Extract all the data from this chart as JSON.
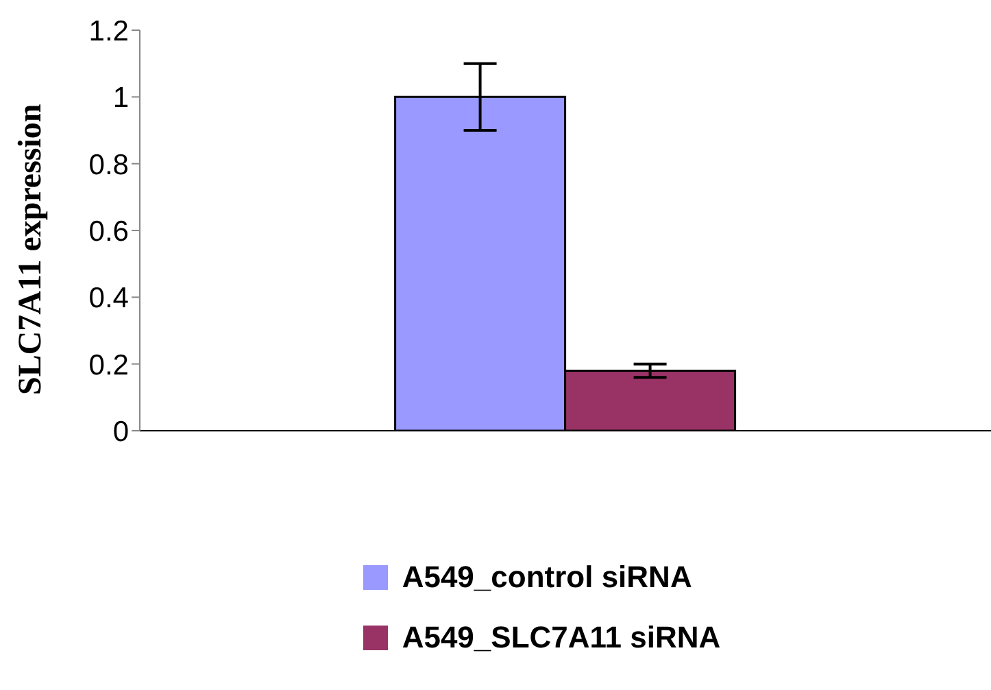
{
  "chart_data": {
    "type": "bar",
    "ylabel": "SLC7A11 expression",
    "categories": [
      null
    ],
    "series": [
      {
        "name": "A549_control siRNA",
        "color": "#9999ff",
        "values": [
          1.0
        ],
        "errors": [
          0.1
        ]
      },
      {
        "name": "A549_SLC7A11 siRNA",
        "color": "#993366",
        "values": [
          0.18
        ],
        "errors": [
          0.02
        ]
      }
    ],
    "ylim": [
      0,
      1.2
    ],
    "yticks": [
      0,
      0.2,
      0.4,
      0.6,
      0.8,
      1,
      1.2
    ],
    "legend": "bottom"
  }
}
